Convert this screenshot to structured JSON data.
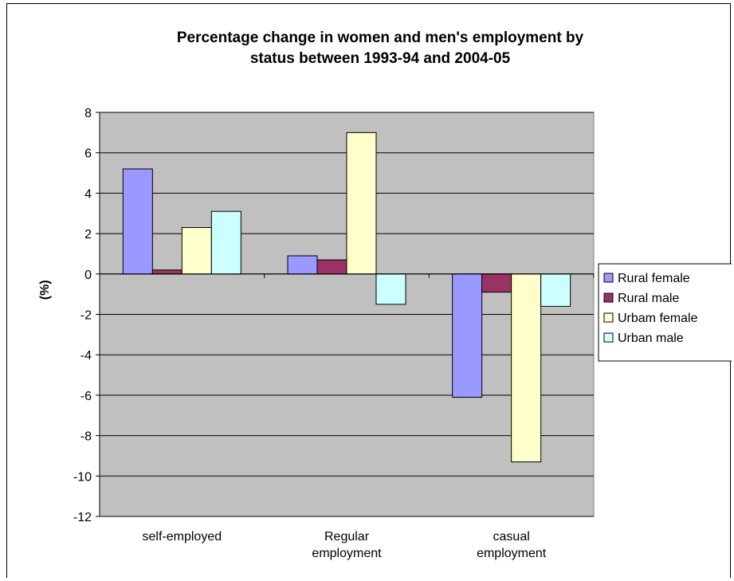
{
  "chart_data": {
    "type": "bar",
    "title_lines": [
      "Percentage change in women and men's employment by",
      "status between 1993-94 and 2004-05"
    ],
    "ylabel": "(%)",
    "xlabel": "",
    "categories": [
      [
        "self-employed"
      ],
      [
        "Regular",
        "employment"
      ],
      [
        "casual",
        "employment"
      ]
    ],
    "ylim": [
      -12,
      8
    ],
    "yticks": [
      8,
      6,
      4,
      2,
      0,
      -2,
      -4,
      -6,
      -8,
      -10,
      -12
    ],
    "grid": true,
    "legend_position": "right",
    "series": [
      {
        "name": "Rural female",
        "color": "#9999ff",
        "values": [
          5.2,
          0.9,
          -6.1
        ]
      },
      {
        "name": "Rural male",
        "color": "#993366",
        "values": [
          0.2,
          0.7,
          -0.9
        ]
      },
      {
        "name": "Urbam female",
        "color": "#ffffcc",
        "values": [
          2.3,
          7.0,
          -9.3
        ]
      },
      {
        "name": "Urban male",
        "color": "#ccffff",
        "values": [
          3.1,
          -1.5,
          -1.6
        ]
      }
    ],
    "plot_background": "#c0c0c0"
  }
}
